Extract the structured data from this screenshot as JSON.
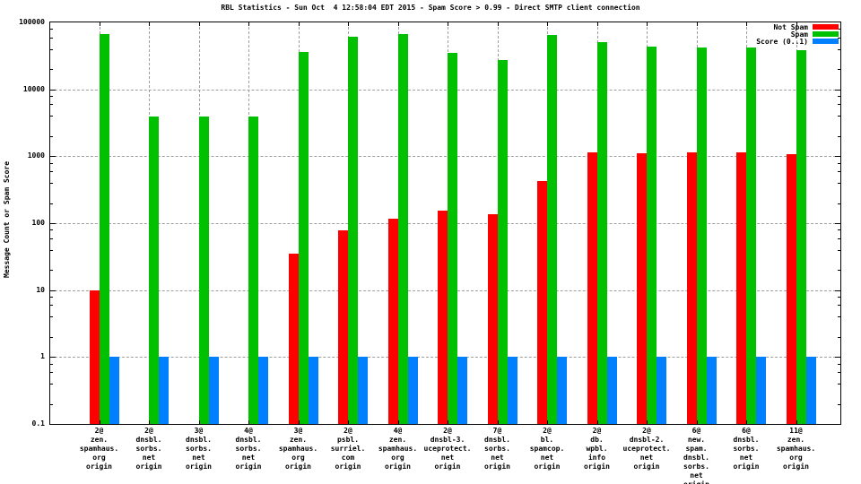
{
  "title": "RBL Statistics - Sun Oct  4 12:58:04 EDT 2015 - Spam Score > 0.99 - Direct SMTP client connection",
  "y_axis": {
    "label": "Message Count or Spam Score",
    "ticks": [
      {
        "label": "100000",
        "value": 100000
      },
      {
        "label": "10000",
        "value": 10000
      },
      {
        "label": "1000",
        "value": 1000
      },
      {
        "label": "100",
        "value": 100
      },
      {
        "label": "10",
        "value": 10
      },
      {
        "label": "1",
        "value": 1
      },
      {
        "label": "0.1",
        "value": 0.1
      }
    ]
  },
  "legend": [
    {
      "label": "Not Spam",
      "color": "#ff0000"
    },
    {
      "label": "Spam",
      "color": "#00c000"
    },
    {
      "label": "Score (0..1)",
      "color": "#0080ff"
    }
  ],
  "colors": {
    "not_spam": "#ff0000",
    "spam": "#00c000",
    "score": "#0080ff",
    "grid": "#9e9e9e"
  },
  "chart_data": {
    "type": "bar",
    "scale": "log",
    "ylim": [
      0.1,
      100000
    ],
    "grid": true,
    "legend_position": "top-right",
    "categories": [
      [
        "2@",
        "zen.",
        "spamhaus.",
        "org",
        "origin"
      ],
      [
        "2@",
        "dnsbl.",
        "sorbs.",
        "net",
        "origin"
      ],
      [
        "3@",
        "dnsbl.",
        "sorbs.",
        "net",
        "origin"
      ],
      [
        "4@",
        "dnsbl.",
        "sorbs.",
        "net",
        "origin"
      ],
      [
        "3@",
        "zen.",
        "spamhaus.",
        "org",
        "origin"
      ],
      [
        "2@",
        "psbl.",
        "surriel.",
        "com",
        "origin"
      ],
      [
        "4@",
        "zen.",
        "spamhaus.",
        "org",
        "origin"
      ],
      [
        "2@",
        "dnsbl-3.",
        "uceprotect.",
        "net",
        "origin"
      ],
      [
        "7@",
        "dnsbl.",
        "sorbs.",
        "net",
        "origin"
      ],
      [
        "2@",
        "bl.",
        "spamcop.",
        "net",
        "origin"
      ],
      [
        "2@",
        "db.",
        "wpbl.",
        "info",
        "origin"
      ],
      [
        "2@",
        "dnsbl-2.",
        "uceprotect.",
        "net",
        "origin"
      ],
      [
        "6@",
        "new.",
        "spam.",
        "dnsbl.",
        "sorbs.",
        "net",
        "origin"
      ],
      [
        "6@",
        "dnsbl.",
        "sorbs.",
        "net",
        "origin"
      ],
      [
        "11@",
        "zen.",
        "spamhaus.",
        "org",
        "origin"
      ]
    ],
    "series": [
      {
        "name": "Not Spam",
        "color": "#ff0000",
        "values": [
          10,
          0,
          0,
          0,
          35,
          78,
          115,
          155,
          135,
          430,
          1140,
          1100,
          1150,
          1150,
          1060
        ]
      },
      {
        "name": "Spam",
        "color": "#00c000",
        "values": [
          67000,
          3900,
          3900,
          3900,
          36000,
          62000,
          67000,
          35000,
          27000,
          64000,
          50000,
          44000,
          42000,
          42000,
          38000
        ]
      },
      {
        "name": "Score (0..1)",
        "color": "#0080ff",
        "values": [
          1,
          1,
          1,
          1,
          1,
          1,
          1,
          1,
          1,
          1,
          1,
          1,
          1,
          1,
          1
        ]
      }
    ]
  }
}
